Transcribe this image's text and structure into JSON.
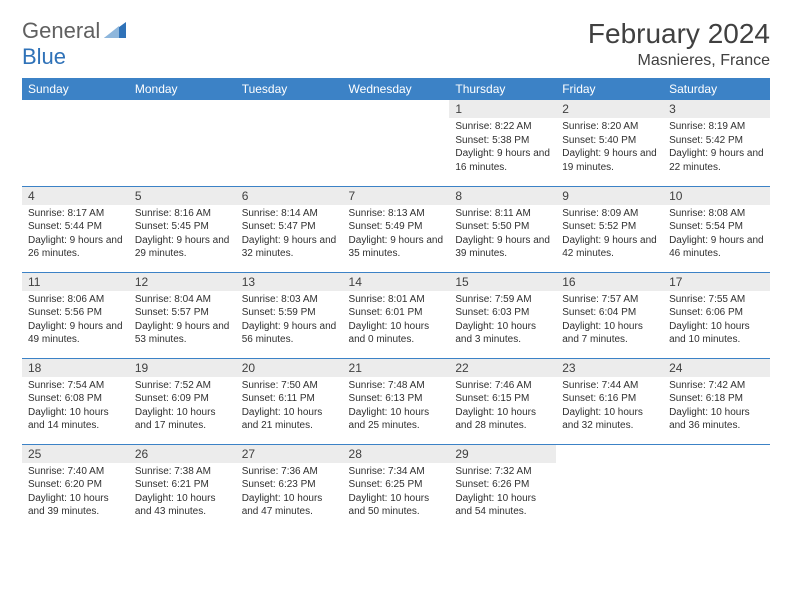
{
  "brand": {
    "part1": "General",
    "part2": "Blue"
  },
  "title": "February 2024",
  "location": "Masnieres, France",
  "colors": {
    "header_bg": "#3c82c6",
    "header_text": "#ffffff",
    "daynum_bg": "#ececec",
    "body_text": "#303030",
    "title_text": "#404040",
    "rule": "#3c82c6",
    "brand_gray": "#606060",
    "brand_blue": "#2f72b8"
  },
  "day_headers": [
    "Sunday",
    "Monday",
    "Tuesday",
    "Wednesday",
    "Thursday",
    "Friday",
    "Saturday"
  ],
  "weeks": [
    [
      null,
      null,
      null,
      null,
      {
        "n": "1",
        "sr": "8:22 AM",
        "ss": "5:38 PM",
        "dl": "9 hours and 16 minutes."
      },
      {
        "n": "2",
        "sr": "8:20 AM",
        "ss": "5:40 PM",
        "dl": "9 hours and 19 minutes."
      },
      {
        "n": "3",
        "sr": "8:19 AM",
        "ss": "5:42 PM",
        "dl": "9 hours and 22 minutes."
      }
    ],
    [
      {
        "n": "4",
        "sr": "8:17 AM",
        "ss": "5:44 PM",
        "dl": "9 hours and 26 minutes."
      },
      {
        "n": "5",
        "sr": "8:16 AM",
        "ss": "5:45 PM",
        "dl": "9 hours and 29 minutes."
      },
      {
        "n": "6",
        "sr": "8:14 AM",
        "ss": "5:47 PM",
        "dl": "9 hours and 32 minutes."
      },
      {
        "n": "7",
        "sr": "8:13 AM",
        "ss": "5:49 PM",
        "dl": "9 hours and 35 minutes."
      },
      {
        "n": "8",
        "sr": "8:11 AM",
        "ss": "5:50 PM",
        "dl": "9 hours and 39 minutes."
      },
      {
        "n": "9",
        "sr": "8:09 AM",
        "ss": "5:52 PM",
        "dl": "9 hours and 42 minutes."
      },
      {
        "n": "10",
        "sr": "8:08 AM",
        "ss": "5:54 PM",
        "dl": "9 hours and 46 minutes."
      }
    ],
    [
      {
        "n": "11",
        "sr": "8:06 AM",
        "ss": "5:56 PM",
        "dl": "9 hours and 49 minutes."
      },
      {
        "n": "12",
        "sr": "8:04 AM",
        "ss": "5:57 PM",
        "dl": "9 hours and 53 minutes."
      },
      {
        "n": "13",
        "sr": "8:03 AM",
        "ss": "5:59 PM",
        "dl": "9 hours and 56 minutes."
      },
      {
        "n": "14",
        "sr": "8:01 AM",
        "ss": "6:01 PM",
        "dl": "10 hours and 0 minutes."
      },
      {
        "n": "15",
        "sr": "7:59 AM",
        "ss": "6:03 PM",
        "dl": "10 hours and 3 minutes."
      },
      {
        "n": "16",
        "sr": "7:57 AM",
        "ss": "6:04 PM",
        "dl": "10 hours and 7 minutes."
      },
      {
        "n": "17",
        "sr": "7:55 AM",
        "ss": "6:06 PM",
        "dl": "10 hours and 10 minutes."
      }
    ],
    [
      {
        "n": "18",
        "sr": "7:54 AM",
        "ss": "6:08 PM",
        "dl": "10 hours and 14 minutes."
      },
      {
        "n": "19",
        "sr": "7:52 AM",
        "ss": "6:09 PM",
        "dl": "10 hours and 17 minutes."
      },
      {
        "n": "20",
        "sr": "7:50 AM",
        "ss": "6:11 PM",
        "dl": "10 hours and 21 minutes."
      },
      {
        "n": "21",
        "sr": "7:48 AM",
        "ss": "6:13 PM",
        "dl": "10 hours and 25 minutes."
      },
      {
        "n": "22",
        "sr": "7:46 AM",
        "ss": "6:15 PM",
        "dl": "10 hours and 28 minutes."
      },
      {
        "n": "23",
        "sr": "7:44 AM",
        "ss": "6:16 PM",
        "dl": "10 hours and 32 minutes."
      },
      {
        "n": "24",
        "sr": "7:42 AM",
        "ss": "6:18 PM",
        "dl": "10 hours and 36 minutes."
      }
    ],
    [
      {
        "n": "25",
        "sr": "7:40 AM",
        "ss": "6:20 PM",
        "dl": "10 hours and 39 minutes."
      },
      {
        "n": "26",
        "sr": "7:38 AM",
        "ss": "6:21 PM",
        "dl": "10 hours and 43 minutes."
      },
      {
        "n": "27",
        "sr": "7:36 AM",
        "ss": "6:23 PM",
        "dl": "10 hours and 47 minutes."
      },
      {
        "n": "28",
        "sr": "7:34 AM",
        "ss": "6:25 PM",
        "dl": "10 hours and 50 minutes."
      },
      {
        "n": "29",
        "sr": "7:32 AM",
        "ss": "6:26 PM",
        "dl": "10 hours and 54 minutes."
      },
      null,
      null
    ]
  ],
  "labels": {
    "sunrise": "Sunrise:",
    "sunset": "Sunset:",
    "daylight": "Daylight:"
  }
}
